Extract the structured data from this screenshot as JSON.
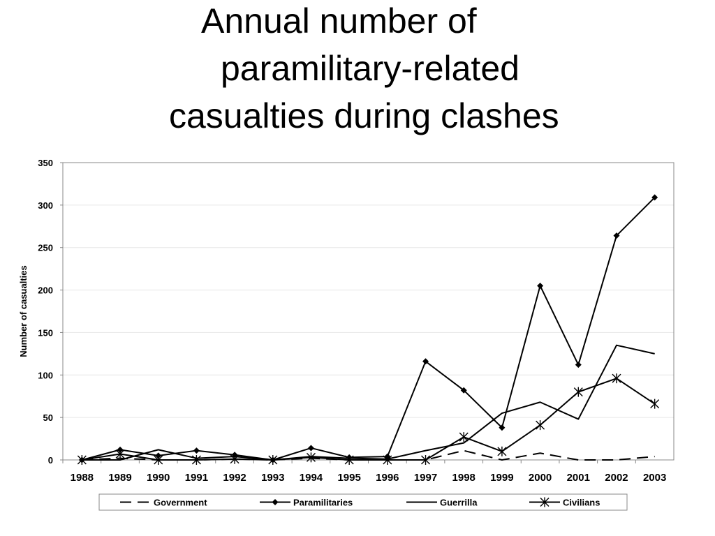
{
  "title_lines": [
    "Annual number of",
    "paramilitary-related",
    "casualties during clashes"
  ],
  "chart_data": {
    "type": "line",
    "title": "Annual number of paramilitary-related casualties during clashes",
    "xlabel": "",
    "ylabel": "Number of casualties",
    "ylim": [
      0,
      350
    ],
    "yticks": [
      "0",
      "50",
      "100",
      "150",
      "200",
      "250",
      "300",
      "350"
    ],
    "categories": [
      "1988",
      "1989",
      "1990",
      "1991",
      "1992",
      "1993",
      "1994",
      "1995",
      "1996",
      "1997",
      "1998",
      "1999",
      "2000",
      "2001",
      "2002",
      "2003"
    ],
    "grid": true,
    "legend_position": "bottom",
    "series": [
      {
        "name": "Government",
        "style": "dashed",
        "marker": "none",
        "color": "#000000",
        "values": [
          0,
          2,
          0,
          0,
          1,
          0,
          2,
          0,
          0,
          0,
          11,
          0,
          8,
          0,
          0,
          4
        ]
      },
      {
        "name": "Paramilitaries",
        "style": "solid",
        "marker": "diamond",
        "color": "#000000",
        "values": [
          0,
          12,
          5,
          11,
          6,
          0,
          14,
          3,
          4,
          116,
          82,
          38,
          205,
          112,
          264,
          309
        ]
      },
      {
        "name": "Guerrilla",
        "style": "solid",
        "marker": "none",
        "color": "#000000",
        "values": [
          0,
          0,
          12,
          2,
          4,
          0,
          4,
          2,
          1,
          11,
          20,
          55,
          68,
          48,
          135,
          125
        ]
      },
      {
        "name": "Civilians",
        "style": "solid",
        "marker": "asterisk",
        "color": "#000000",
        "values": [
          0,
          7,
          0,
          0,
          1,
          0,
          3,
          0,
          0,
          0,
          27,
          10,
          41,
          80,
          96,
          66
        ]
      }
    ]
  }
}
